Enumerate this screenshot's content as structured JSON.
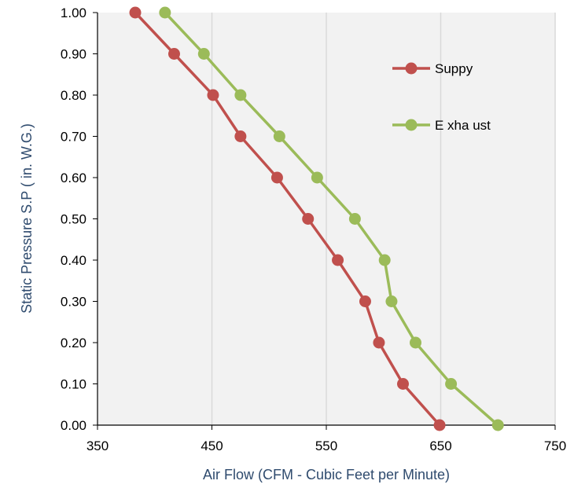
{
  "chart_data": {
    "type": "line",
    "xlabel": "Air Flow (CFM - Cubic Feet per Minute)",
    "ylabel": "Static Pressure S.P ( in. W.G.)",
    "xlim": [
      350,
      750
    ],
    "ylim": [
      0,
      1
    ],
    "x_ticks": [
      "350",
      "450",
      "550",
      "650",
      "750"
    ],
    "y_ticks": [
      "0.00",
      "0.10",
      "0.20",
      "0.30",
      "0.40",
      "0.50",
      "0.60",
      "0.70",
      "0.80",
      "0.90",
      "1.00"
    ],
    "grid": true,
    "legend_position": "right",
    "series": [
      {
        "name": "Suppy",
        "color": "#c0504d",
        "points": [
          [
            383,
            1.0
          ],
          [
            417,
            0.9
          ],
          [
            451,
            0.8
          ],
          [
            475,
            0.7
          ],
          [
            507,
            0.6
          ],
          [
            534,
            0.5
          ],
          [
            560,
            0.4
          ],
          [
            584,
            0.3
          ],
          [
            596,
            0.2
          ],
          [
            617,
            0.1
          ],
          [
            649,
            0.0
          ]
        ]
      },
      {
        "name": "E xha ust",
        "color": "#9bbb59",
        "points": [
          [
            409,
            1.0
          ],
          [
            443,
            0.9
          ],
          [
            475,
            0.8
          ],
          [
            509,
            0.7
          ],
          [
            542,
            0.6
          ],
          [
            575,
            0.5
          ],
          [
            601,
            0.4
          ],
          [
            607,
            0.3
          ],
          [
            628,
            0.2
          ],
          [
            659,
            0.1
          ],
          [
            700,
            0.0
          ]
        ]
      }
    ]
  }
}
